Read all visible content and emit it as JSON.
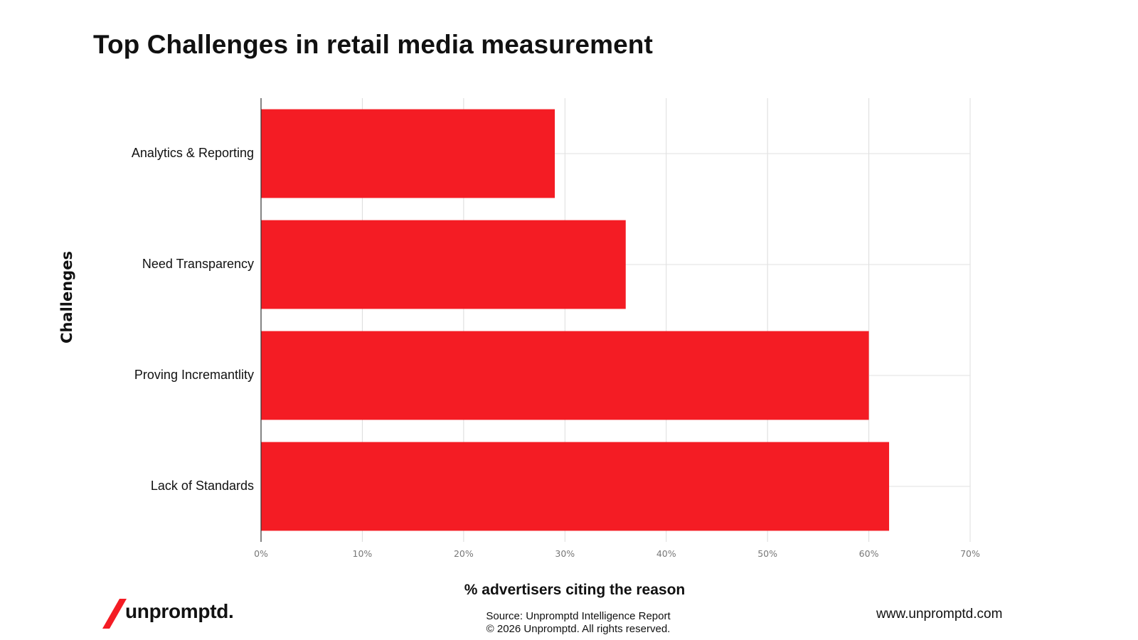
{
  "chart_data": {
    "type": "bar",
    "orientation": "horizontal",
    "title": "Top Challenges in retail media measurement",
    "xlabel": "% advertisers citing the reason",
    "ylabel": "Challenges",
    "categories": [
      "Analytics & Reporting",
      "Need Transparency",
      "Proving Incremantlity",
      "Lack of Standards"
    ],
    "values": [
      29,
      36,
      60,
      62
    ],
    "xlim": [
      0,
      70
    ],
    "xticks": [
      0,
      10,
      20,
      30,
      40,
      50,
      60,
      70
    ],
    "xtick_labels": [
      "0%",
      "10%",
      "20%",
      "30%",
      "40%",
      "50%",
      "60%",
      "70%"
    ],
    "grid": true,
    "bar_color": "#f41c24"
  },
  "footer": {
    "logo_text": "unpromptd.",
    "logo_color": "#f41c24",
    "source_line1": "Source: Unpromptd Intelligence Report",
    "source_line2": "© 2026 Unpromptd. All rights reserved.",
    "website": "www.unpromptd.com"
  }
}
